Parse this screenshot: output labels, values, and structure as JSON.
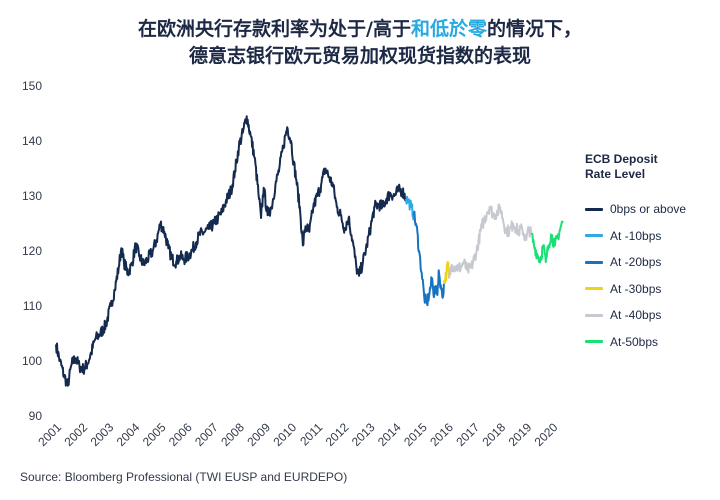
{
  "title": {
    "line1_pre": "在欧洲央行存款利率为处于/高于",
    "line1_highlight": "和低於零",
    "line1_post": "的情况下，",
    "line2": "德意志银行欧元贸易加权现货指数的表现"
  },
  "source": "Source: Bloomberg Professional (TWI EUSP and EURDEPO)",
  "chart_data": {
    "type": "line",
    "ylim": [
      90,
      150
    ],
    "yticks": [
      90,
      100,
      110,
      120,
      130,
      140,
      150
    ],
    "xlim": [
      2001,
      2020.6
    ],
    "xticks": [
      "2001",
      "2002",
      "2003",
      "2004",
      "2005",
      "2006",
      "2007",
      "2008",
      "2009",
      "2010",
      "2011",
      "2012",
      "2013",
      "2014",
      "2015",
      "2016",
      "2017",
      "2018",
      "2019",
      "2020"
    ],
    "legend_title": "ECB Deposit\nRate Level",
    "legend_position": "right",
    "grid": false,
    "series": [
      {
        "name": "0bps or above",
        "color": "#152a4f",
        "points": [
          [
            2001.0,
            103
          ],
          [
            2001.15,
            100
          ],
          [
            2001.3,
            97.5
          ],
          [
            2001.45,
            95.5
          ],
          [
            2001.6,
            99.5
          ],
          [
            2001.75,
            100.5
          ],
          [
            2001.9,
            99
          ],
          [
            2002.05,
            98.5
          ],
          [
            2002.2,
            99.5
          ],
          [
            2002.35,
            101.5
          ],
          [
            2002.5,
            104
          ],
          [
            2002.7,
            105
          ],
          [
            2002.9,
            106.5
          ],
          [
            2003.1,
            110
          ],
          [
            2003.25,
            113
          ],
          [
            2003.4,
            117
          ],
          [
            2003.5,
            120.5
          ],
          [
            2003.6,
            118
          ],
          [
            2003.75,
            116
          ],
          [
            2003.9,
            117.5
          ],
          [
            2004.05,
            121
          ],
          [
            2004.2,
            119
          ],
          [
            2004.35,
            117.5
          ],
          [
            2004.5,
            118.5
          ],
          [
            2004.7,
            120
          ],
          [
            2004.85,
            122
          ],
          [
            2005.0,
            125
          ],
          [
            2005.15,
            123.5
          ],
          [
            2005.3,
            120.5
          ],
          [
            2005.45,
            118.5
          ],
          [
            2005.6,
            118
          ],
          [
            2005.75,
            119
          ],
          [
            2005.9,
            118.5
          ],
          [
            2006.05,
            119
          ],
          [
            2006.2,
            120
          ],
          [
            2006.35,
            121.5
          ],
          [
            2006.5,
            123
          ],
          [
            2006.7,
            123.5
          ],
          [
            2006.85,
            124
          ],
          [
            2007.05,
            125
          ],
          [
            2007.2,
            126
          ],
          [
            2007.35,
            127
          ],
          [
            2007.5,
            129
          ],
          [
            2007.7,
            131
          ],
          [
            2007.85,
            134.5
          ],
          [
            2008.0,
            139
          ],
          [
            2008.15,
            141.5
          ],
          [
            2008.3,
            144.5
          ],
          [
            2008.45,
            141
          ],
          [
            2008.6,
            137
          ],
          [
            2008.75,
            130.5
          ],
          [
            2008.85,
            126
          ],
          [
            2008.95,
            131.5
          ],
          [
            2009.1,
            126.5
          ],
          [
            2009.25,
            128
          ],
          [
            2009.4,
            132
          ],
          [
            2009.55,
            135
          ],
          [
            2009.7,
            139
          ],
          [
            2009.85,
            142.5
          ],
          [
            2010.0,
            140
          ],
          [
            2010.1,
            136
          ],
          [
            2010.2,
            133
          ],
          [
            2010.35,
            127
          ],
          [
            2010.45,
            121
          ],
          [
            2010.55,
            124.5
          ],
          [
            2010.7,
            123.5
          ],
          [
            2010.85,
            128
          ],
          [
            2011.0,
            130
          ],
          [
            2011.15,
            132
          ],
          [
            2011.3,
            135
          ],
          [
            2011.45,
            133.5
          ],
          [
            2011.6,
            132
          ],
          [
            2011.75,
            128
          ],
          [
            2011.9,
            126.5
          ],
          [
            2012.05,
            124
          ],
          [
            2012.2,
            126
          ],
          [
            2012.35,
            122
          ],
          [
            2012.5,
            117
          ],
          [
            2012.6,
            115.5
          ],
          [
            2012.75,
            118
          ],
          [
            2012.9,
            121
          ],
          [
            2013.05,
            124.5
          ],
          [
            2013.2,
            128
          ],
          [
            2013.35,
            128.5
          ],
          [
            2013.5,
            128
          ],
          [
            2013.65,
            129.5
          ],
          [
            2013.8,
            130.5
          ],
          [
            2013.95,
            130
          ],
          [
            2014.1,
            131
          ],
          [
            2014.25,
            131
          ],
          [
            2014.4,
            129.5
          ]
        ]
      },
      {
        "name": "At -10bps",
        "color": "#2ea8e6",
        "points": [
          [
            2014.4,
            129.5
          ],
          [
            2014.5,
            129
          ],
          [
            2014.6,
            128
          ],
          [
            2014.7,
            126.5
          ]
        ]
      },
      {
        "name": "At -20bps",
        "color": "#1573c2",
        "points": [
          [
            2014.7,
            126.5
          ],
          [
            2014.8,
            124.5
          ],
          [
            2014.9,
            120
          ],
          [
            2015.0,
            116
          ],
          [
            2015.1,
            111.5
          ],
          [
            2015.2,
            110.5
          ],
          [
            2015.3,
            112.5
          ],
          [
            2015.4,
            115
          ],
          [
            2015.45,
            112
          ],
          [
            2015.5,
            113.5
          ],
          [
            2015.6,
            112
          ],
          [
            2015.65,
            116.5
          ],
          [
            2015.75,
            113
          ],
          [
            2015.8,
            111.5
          ],
          [
            2015.85,
            114
          ]
        ]
      },
      {
        "name": "At -30bps",
        "color": "#f0d21a",
        "points": [
          [
            2015.85,
            114
          ],
          [
            2015.95,
            116
          ],
          [
            2016.0,
            118
          ],
          [
            2016.05,
            115
          ]
        ]
      },
      {
        "name": "At -40bps",
        "color": "#c6c9cf",
        "points": [
          [
            2016.05,
            115
          ],
          [
            2016.15,
            117.5
          ],
          [
            2016.3,
            117
          ],
          [
            2016.5,
            117
          ],
          [
            2016.6,
            118
          ],
          [
            2016.75,
            116.5
          ],
          [
            2016.9,
            117
          ],
          [
            2017.1,
            120
          ],
          [
            2017.3,
            124.5
          ],
          [
            2017.5,
            127
          ],
          [
            2017.6,
            128
          ],
          [
            2017.75,
            126.5
          ],
          [
            2017.9,
            127
          ],
          [
            2018.0,
            128
          ],
          [
            2018.1,
            126
          ],
          [
            2018.2,
            124
          ],
          [
            2018.35,
            123.5
          ],
          [
            2018.5,
            125
          ],
          [
            2018.7,
            123.5
          ],
          [
            2018.85,
            124
          ],
          [
            2019.0,
            122
          ],
          [
            2019.1,
            124
          ],
          [
            2019.2,
            123
          ]
        ]
      },
      {
        "name": "At-50bps",
        "color": "#19e074",
        "points": [
          [
            2019.2,
            123
          ],
          [
            2019.3,
            121
          ],
          [
            2019.45,
            119
          ],
          [
            2019.55,
            118.5
          ],
          [
            2019.65,
            121
          ],
          [
            2019.75,
            118
          ],
          [
            2019.85,
            121
          ],
          [
            2019.95,
            123
          ],
          [
            2020.1,
            121
          ],
          [
            2020.2,
            122.5
          ],
          [
            2020.3,
            124
          ],
          [
            2020.4,
            125.5
          ]
        ]
      }
    ]
  }
}
